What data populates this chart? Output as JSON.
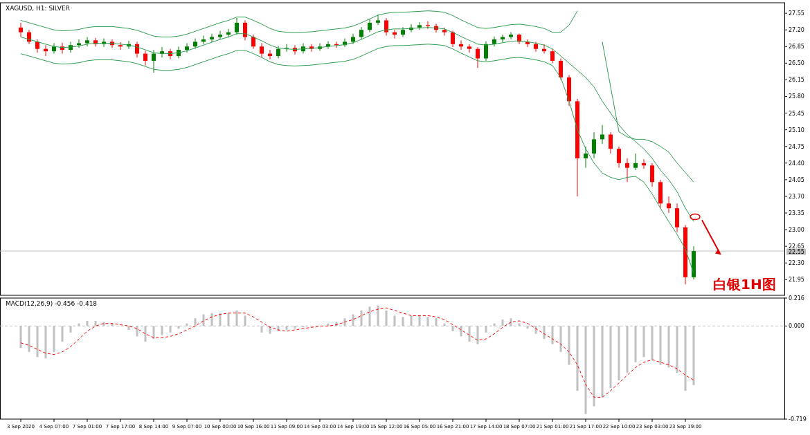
{
  "chart_data": [
    {
      "type": "candlestick",
      "title": "XAGUSD, H1:  SILVER",
      "categories": [
        null,
        null,
        null,
        null,
        null,
        null,
        null,
        null,
        null,
        null,
        null,
        null,
        null,
        null,
        null,
        null,
        null,
        null,
        null,
        null,
        null,
        null,
        null,
        null,
        null,
        null,
        null,
        null,
        null,
        null,
        null,
        null,
        null,
        null,
        null,
        null,
        null,
        null,
        null,
        null,
        null,
        null,
        null,
        null,
        null,
        null,
        null,
        null,
        null,
        null,
        null,
        null,
        null,
        null,
        null,
        null,
        null,
        null,
        null,
        null,
        null,
        null,
        null,
        null,
        null,
        null,
        null,
        null,
        null,
        null,
        null,
        null,
        null,
        null,
        null,
        null,
        null,
        null,
        null,
        null,
        null,
        null
      ],
      "ohlc": [
        [
          27.25,
          27.35,
          27.05,
          27.15
        ],
        [
          27.15,
          27.2,
          26.9,
          26.95
        ],
        [
          26.95,
          27.0,
          26.72,
          26.8
        ],
        [
          26.8,
          26.88,
          26.65,
          26.75
        ],
        [
          26.75,
          26.92,
          26.7,
          26.85
        ],
        [
          26.85,
          26.93,
          26.7,
          26.78
        ],
        [
          26.78,
          26.95,
          26.72,
          26.88
        ],
        [
          26.88,
          27.0,
          26.82,
          26.92
        ],
        [
          26.92,
          27.05,
          26.85,
          26.98
        ],
        [
          26.98,
          27.03,
          26.85,
          26.9
        ],
        [
          26.9,
          27.02,
          26.84,
          26.95
        ],
        [
          26.95,
          27.0,
          26.82,
          26.88
        ],
        [
          26.88,
          26.94,
          26.78,
          26.85
        ],
        [
          26.85,
          26.97,
          26.8,
          26.9
        ],
        [
          26.9,
          26.95,
          26.62,
          26.7
        ],
        [
          26.7,
          26.76,
          26.45,
          26.55
        ],
        [
          26.55,
          26.78,
          26.3,
          26.7
        ],
        [
          26.7,
          26.84,
          26.62,
          26.75
        ],
        [
          26.75,
          26.8,
          26.58,
          26.65
        ],
        [
          26.65,
          26.85,
          26.6,
          26.78
        ],
        [
          26.78,
          26.92,
          26.72,
          26.85
        ],
        [
          26.85,
          27.02,
          26.8,
          26.95
        ],
        [
          26.95,
          27.08,
          26.9,
          27.0
        ],
        [
          27.0,
          27.12,
          26.94,
          27.05
        ],
        [
          27.05,
          27.18,
          27.0,
          27.1
        ],
        [
          27.1,
          27.22,
          27.04,
          27.15
        ],
        [
          27.15,
          27.45,
          27.1,
          27.35
        ],
        [
          27.35,
          27.4,
          26.98,
          27.05
        ],
        [
          27.05,
          27.1,
          26.8,
          26.85
        ],
        [
          26.85,
          26.92,
          26.62,
          26.7
        ],
        [
          26.7,
          26.78,
          26.58,
          26.65
        ],
        [
          26.65,
          26.86,
          26.6,
          26.8
        ],
        [
          26.8,
          26.9,
          26.74,
          26.82
        ],
        [
          26.82,
          26.88,
          26.68,
          26.75
        ],
        [
          26.75,
          26.92,
          26.7,
          26.85
        ],
        [
          26.85,
          26.9,
          26.74,
          26.8
        ],
        [
          26.8,
          26.92,
          26.76,
          26.85
        ],
        [
          26.85,
          26.96,
          26.8,
          26.9
        ],
        [
          26.9,
          26.95,
          26.82,
          26.88
        ],
        [
          26.88,
          27.02,
          26.84,
          26.95
        ],
        [
          26.95,
          27.12,
          26.9,
          27.05
        ],
        [
          27.05,
          27.26,
          27.0,
          27.2
        ],
        [
          27.2,
          27.42,
          27.15,
          27.35
        ],
        [
          27.35,
          27.52,
          27.3,
          27.4
        ],
        [
          27.4,
          27.45,
          27.08,
          27.15
        ],
        [
          27.15,
          27.2,
          27.02,
          27.1
        ],
        [
          27.1,
          27.26,
          27.05,
          27.2
        ],
        [
          27.2,
          27.32,
          27.15,
          27.25
        ],
        [
          27.25,
          27.36,
          27.2,
          27.3
        ],
        [
          27.3,
          27.38,
          27.22,
          27.28
        ],
        [
          27.28,
          27.33,
          27.14,
          27.2
        ],
        [
          27.2,
          27.25,
          27.08,
          27.15
        ],
        [
          27.15,
          27.18,
          26.84,
          26.9
        ],
        [
          26.9,
          26.98,
          26.78,
          26.85
        ],
        [
          26.85,
          26.9,
          26.72,
          26.8
        ],
        [
          26.8,
          26.84,
          26.4,
          26.6
        ],
        [
          26.6,
          26.96,
          26.55,
          26.9
        ],
        [
          26.9,
          27.06,
          26.85,
          27.0
        ],
        [
          27.0,
          27.1,
          26.94,
          27.05
        ],
        [
          27.05,
          27.15,
          27.0,
          27.1
        ],
        [
          27.1,
          27.12,
          26.9,
          26.95
        ],
        [
          26.95,
          27.0,
          26.84,
          26.9
        ],
        [
          26.9,
          26.95,
          26.74,
          26.8
        ],
        [
          26.8,
          26.9,
          26.7,
          26.75
        ],
        [
          26.75,
          26.8,
          26.5,
          26.55
        ],
        [
          26.55,
          26.6,
          26.15,
          26.2
        ],
        [
          26.2,
          26.25,
          25.6,
          25.7
        ],
        [
          25.7,
          25.75,
          23.7,
          24.5
        ],
        [
          24.5,
          24.75,
          24.3,
          24.6
        ],
        [
          24.6,
          25.05,
          24.5,
          24.9
        ],
        [
          24.9,
          25.2,
          24.8,
          25.0
        ],
        [
          25.0,
          25.05,
          24.6,
          24.7
        ],
        [
          24.7,
          24.75,
          24.3,
          24.4
        ],
        [
          24.4,
          24.5,
          24.0,
          24.3
        ],
        [
          24.3,
          24.6,
          24.25,
          24.4
        ],
        [
          24.4,
          24.48,
          24.28,
          24.35
        ],
        [
          24.35,
          24.4,
          23.9,
          24.0
        ],
        [
          24.0,
          24.05,
          23.45,
          23.55
        ],
        [
          23.55,
          23.7,
          23.35,
          23.45
        ],
        [
          23.45,
          23.55,
          22.95,
          23.05
        ],
        [
          23.05,
          23.1,
          21.85,
          22.0
        ],
        [
          22.0,
          22.65,
          21.95,
          22.55
        ]
      ],
      "series": [
        {
          "type": "line",
          "color": "#2e9e4f",
          "values": [
            27.4,
            27.35,
            27.3,
            27.25,
            27.2,
            27.18,
            27.19,
            27.21,
            27.25,
            27.27,
            27.27,
            27.27,
            27.25,
            27.23,
            27.19,
            27.13,
            27.07,
            27.05,
            27.05,
            27.07,
            27.11,
            27.17,
            27.23,
            27.29,
            27.35,
            27.4,
            27.47,
            27.47,
            27.4,
            27.32,
            27.23,
            27.17,
            27.15,
            27.14,
            27.15,
            27.16,
            27.18,
            27.2,
            27.22,
            27.24,
            27.28,
            27.35,
            27.43,
            27.51,
            27.55,
            27.57,
            27.57,
            27.58,
            27.59,
            27.6,
            27.59,
            27.57,
            27.5,
            27.41,
            27.33,
            27.25,
            27.23,
            27.25,
            27.28,
            27.31,
            27.32,
            27.3,
            27.27,
            27.23,
            27.15,
            27.15,
            27.3,
            27.6,
            null,
            null,
            26.95,
            26.0,
            25.06,
            24.95,
            24.9,
            24.9,
            24.85,
            24.75,
            24.63,
            24.4,
            24.2,
            24.0
          ]
        },
        {
          "type": "line",
          "color": "#2e9e4f",
          "values": [
            27.05,
            27.0,
            26.95,
            26.9,
            26.85,
            26.83,
            26.84,
            26.86,
            26.9,
            26.92,
            26.92,
            26.92,
            26.9,
            26.88,
            26.84,
            26.78,
            26.72,
            26.7,
            26.7,
            26.72,
            26.76,
            26.82,
            26.88,
            26.94,
            27.0,
            27.05,
            27.12,
            27.12,
            27.05,
            26.97,
            26.88,
            26.82,
            26.8,
            26.79,
            26.8,
            26.81,
            26.83,
            26.85,
            26.87,
            26.89,
            26.93,
            27.0,
            27.08,
            27.16,
            27.2,
            27.22,
            27.22,
            27.23,
            27.24,
            27.25,
            27.24,
            27.22,
            27.15,
            27.06,
            26.98,
            26.9,
            26.88,
            26.9,
            26.93,
            26.96,
            26.97,
            26.95,
            26.92,
            26.88,
            26.8,
            26.65,
            26.5,
            26.35,
            26.2,
            26.0,
            25.7,
            25.45,
            25.2,
            25.0,
            24.85,
            24.7,
            24.5,
            24.25,
            24.05,
            23.8,
            23.45,
            23.17
          ]
        },
        {
          "type": "line",
          "color": "#2e9e4f",
          "values": [
            26.7,
            26.65,
            26.6,
            26.55,
            26.5,
            26.48,
            26.49,
            26.51,
            26.55,
            26.57,
            26.57,
            26.57,
            26.55,
            26.53,
            26.49,
            26.43,
            26.37,
            26.35,
            26.35,
            26.37,
            26.41,
            26.47,
            26.53,
            26.59,
            26.65,
            26.7,
            26.77,
            26.77,
            26.7,
            26.62,
            26.53,
            26.47,
            26.45,
            26.44,
            26.45,
            26.46,
            26.48,
            26.5,
            26.52,
            26.54,
            26.58,
            26.65,
            26.73,
            26.81,
            26.85,
            26.87,
            26.87,
            26.88,
            26.89,
            26.9,
            26.89,
            26.87,
            26.8,
            26.71,
            26.63,
            26.55,
            26.53,
            26.55,
            26.58,
            26.61,
            26.62,
            26.6,
            26.57,
            26.53,
            26.45,
            26.2,
            25.7,
            25.1,
            24.7,
            24.4,
            24.19,
            24.1,
            24.05,
            24.1,
            24.12,
            24.0,
            23.75,
            23.45,
            23.17,
            22.9,
            22.59,
            22.08
          ]
        }
      ],
      "ylim": [
        21.62,
        27.77
      ],
      "yticks": [
        {
          "value": 27.55,
          "label": "27.55"
        },
        {
          "value": 27.2,
          "label": "27.20"
        },
        {
          "value": 26.85,
          "label": "26.85"
        },
        {
          "value": 26.5,
          "label": "26.50"
        },
        {
          "value": 26.15,
          "label": "26.15"
        },
        {
          "value": 25.8,
          "label": "25.80"
        },
        {
          "value": 25.45,
          "label": "25.45"
        },
        {
          "value": 25.1,
          "label": "25.10"
        },
        {
          "value": 24.75,
          "label": "24.75"
        },
        {
          "value": 24.4,
          "label": "24.40"
        },
        {
          "value": 24.05,
          "label": "24.05"
        },
        {
          "value": 23.7,
          "label": "23.70"
        },
        {
          "value": 23.35,
          "label": "23.35"
        },
        {
          "value": 23.0,
          "label": "23.00"
        },
        {
          "value": 22.65,
          "label": "22.65"
        },
        {
          "value": 22.3,
          "label": "22.30"
        },
        {
          "value": 21.95,
          "label": "21.95"
        }
      ],
      "tick_labels": "y",
      "ref_lines": [
        {
          "axis": "y",
          "value": 22.55,
          "label": "22.55",
          "color": "#c0c0c0"
        }
      ],
      "annotations": [
        "白银1H图"
      ]
    },
    {
      "type": "bar",
      "title": "MACD(12,26,9) -0.456 -0.418",
      "categories": [
        "3 Sep 2020",
        null,
        null,
        null,
        "4 Sep 07:00",
        null,
        null,
        null,
        "7 Sep 01:00",
        null,
        null,
        null,
        "7 Sep 17:00",
        null,
        null,
        null,
        "8 Sep 14:00",
        null,
        null,
        null,
        "9 Sep 07:00",
        null,
        null,
        null,
        "10 Sep 00:00",
        null,
        null,
        null,
        "10 Sep 16:00",
        null,
        null,
        null,
        "11 Sep 09:00",
        null,
        null,
        null,
        "14 Sep 03:00",
        null,
        null,
        null,
        "14 Sep 19:00",
        null,
        null,
        null,
        "15 Sep 12:00",
        null,
        null,
        null,
        "16 Sep 05:00",
        null,
        null,
        null,
        "16 Sep 21:00",
        null,
        null,
        null,
        "17 Sep 14:00",
        null,
        null,
        null,
        "18 Sep 07:00",
        null,
        null,
        null,
        "21 Sep 01:00",
        null,
        null,
        null,
        "21 Sep 17:00",
        null,
        null,
        null,
        "22 Sep 10:00",
        null,
        null,
        null,
        "23 Sep 03:00",
        null,
        null,
        null,
        "23 Sep 19:00",
        null
      ],
      "series": [
        {
          "color": "#c0c0c0",
          "values": [
            -0.17,
            -0.2,
            -0.24,
            -0.25,
            -0.2,
            -0.12,
            -0.05,
            0.02,
            0.04,
            0.04,
            0.03,
            0.02,
            0.0,
            -0.03,
            -0.08,
            -0.12,
            -0.1,
            -0.07,
            -0.05,
            -0.02,
            0.02,
            0.06,
            0.09,
            0.1,
            0.1,
            0.1,
            0.12,
            0.08,
            0.0,
            -0.05,
            -0.06,
            -0.04,
            -0.03,
            -0.02,
            -0.01,
            0.0,
            0.0,
            0.02,
            0.03,
            0.06,
            0.09,
            0.12,
            0.15,
            0.16,
            0.12,
            0.08,
            0.07,
            0.08,
            0.08,
            0.07,
            0.06,
            0.02,
            -0.04,
            -0.08,
            -0.12,
            -0.14,
            -0.05,
            0.02,
            0.05,
            0.06,
            0.02,
            -0.02,
            -0.06,
            -0.1,
            -0.14,
            -0.2,
            -0.3,
            -0.5,
            -0.68,
            -0.62,
            -0.55,
            -0.48,
            -0.42,
            -0.36,
            -0.28,
            -0.24,
            -0.26,
            -0.3,
            -0.32,
            -0.36,
            -0.5,
            -0.456
          ]
        },
        {
          "type": "line",
          "color": "#ff0000",
          "line_style": "dashed",
          "values": [
            -0.13,
            -0.15,
            -0.18,
            -0.21,
            -0.22,
            -0.2,
            -0.16,
            -0.1,
            -0.04,
            0.0,
            0.02,
            0.02,
            0.01,
            0.0,
            -0.02,
            -0.06,
            -0.09,
            -0.09,
            -0.08,
            -0.06,
            -0.03,
            0.0,
            0.04,
            0.07,
            0.09,
            0.1,
            0.1,
            0.1,
            0.07,
            0.03,
            -0.01,
            -0.03,
            -0.04,
            -0.03,
            -0.02,
            -0.01,
            0.0,
            0.0,
            0.01,
            0.03,
            0.05,
            0.08,
            0.11,
            0.13,
            0.14,
            0.12,
            0.1,
            0.08,
            0.08,
            0.08,
            0.07,
            0.05,
            0.01,
            -0.03,
            -0.07,
            -0.11,
            -0.1,
            -0.06,
            -0.01,
            0.03,
            0.04,
            0.02,
            -0.02,
            -0.06,
            -0.1,
            -0.14,
            -0.2,
            -0.3,
            -0.45,
            -0.55,
            -0.55,
            -0.5,
            -0.44,
            -0.38,
            -0.32,
            -0.28,
            -0.26,
            -0.28,
            -0.3,
            -0.33,
            -0.38,
            -0.418
          ]
        }
      ],
      "ylim": [
        -0.719,
        0.216
      ],
      "yticks": [
        {
          "value": 0.216,
          "label": "0.216"
        },
        {
          "value": 0,
          "label": "0.000"
        },
        {
          "value": -0.719,
          "label": "-0.719"
        }
      ],
      "ref_lines": [
        {
          "axis": "y",
          "value": 0,
          "line_style": "dashed",
          "color": "#c0c0c0"
        }
      ]
    }
  ]
}
